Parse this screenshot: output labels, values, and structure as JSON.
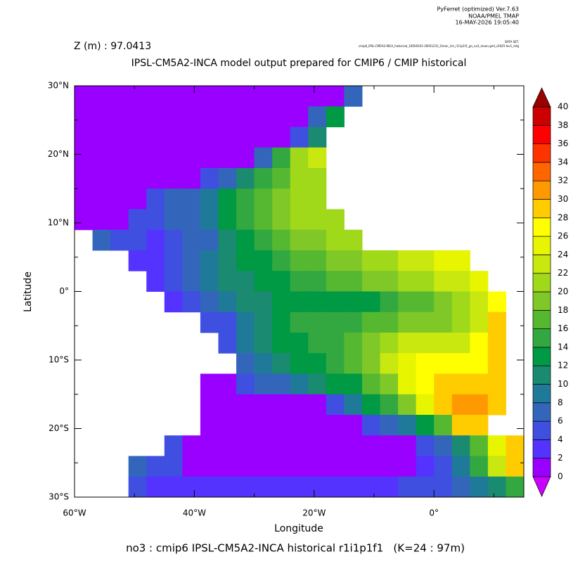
{
  "header": {
    "software": "PyFerret (optimized) Ver.7.63",
    "org": "NOAA/PMEL TMAP",
    "date": "16-MAY-2026 19:05:40",
    "dataset_label": "DATA SET:",
    "dataset": "cmip6_IPSL-CM5A2-INCA_historical_18500101-20051231_Omon_1m_r1i1p1f1_gn_no3_mean.grid_s5025-lev1_mfg"
  },
  "chart_data": {
    "type": "heatmap",
    "subtitle": "Z (m) : 97.0413",
    "title": "IPSL-CM5A2-INCA model output prepared for CMIP6 / CMIP historical",
    "x_label": "Longitude",
    "y_label": "Latitude",
    "caption": "no3 : cmip6 IPSL-CM5A2-INCA historical r1i1p1f1   (K=24 : 97m)",
    "xlim": [
      -60,
      15
    ],
    "ylim": [
      -30,
      30
    ],
    "xticks": [
      {
        "value": -60,
        "label": "60°W"
      },
      {
        "value": -40,
        "label": "40°W"
      },
      {
        "value": -20,
        "label": "20°W"
      },
      {
        "value": 0,
        "label": "0°"
      }
    ],
    "xminor": [
      -50,
      -30,
      -10,
      10
    ],
    "yticks": [
      {
        "value": -30,
        "label": "30°S"
      },
      {
        "value": -20,
        "label": "20°S"
      },
      {
        "value": -10,
        "label": "10°S"
      },
      {
        "value": 0,
        "label": "0°"
      },
      {
        "value": 10,
        "label": "10°N"
      },
      {
        "value": 20,
        "label": "20°N"
      },
      {
        "value": 30,
        "label": "30°N"
      }
    ],
    "yminor": [
      -25,
      -15,
      -5,
      5,
      15,
      25
    ],
    "x": [
      -58.5,
      -55.5,
      -52.5,
      -49.5,
      -46.5,
      -43.5,
      -40.5,
      -37.5,
      -34.5,
      -31.5,
      -28.5,
      -25.5,
      -22.5,
      -19.5,
      -16.5,
      -13.5,
      -10.5,
      -7.5,
      -4.5,
      -1.5,
      1.5,
      4.5,
      7.5,
      10.5,
      13.5
    ],
    "y": [
      28.5,
      25.5,
      22.5,
      19.5,
      16.5,
      13.5,
      10.5,
      7.5,
      4.5,
      1.5,
      -1.5,
      -4.5,
      -7.5,
      -10.5,
      -13.5,
      -16.5,
      -19.5,
      -22.5,
      -25.5,
      -28.5
    ],
    "values": [
      [
        1,
        1,
        1,
        1,
        1,
        1,
        1,
        1,
        1,
        1,
        1,
        1,
        1,
        1,
        1,
        7,
        null,
        null,
        null,
        null,
        null,
        null,
        null,
        null,
        null
      ],
      [
        1,
        1,
        1,
        1,
        1,
        1,
        1,
        1,
        1,
        1,
        1,
        1,
        1,
        7,
        13,
        null,
        null,
        null,
        null,
        null,
        null,
        null,
        null,
        null,
        null
      ],
      [
        1,
        1,
        1,
        1,
        1,
        1,
        1,
        1,
        1,
        1,
        1,
        1,
        5,
        11,
        null,
        null,
        null,
        null,
        null,
        null,
        null,
        null,
        null,
        null,
        null
      ],
      [
        1,
        1,
        1,
        1,
        1,
        1,
        1,
        1,
        1,
        1,
        7,
        15,
        21,
        23,
        null,
        null,
        null,
        null,
        null,
        null,
        null,
        null,
        null,
        null,
        null
      ],
      [
        1,
        1,
        1,
        1,
        1,
        1,
        1,
        5,
        7,
        11,
        15,
        17,
        21,
        21,
        null,
        null,
        null,
        null,
        null,
        null,
        null,
        null,
        null,
        null,
        null
      ],
      [
        1,
        1,
        1,
        1,
        5,
        7,
        7,
        9,
        13,
        15,
        17,
        19,
        21,
        21,
        null,
        null,
        null,
        null,
        null,
        null,
        null,
        null,
        null,
        null,
        null
      ],
      [
        1,
        1,
        1,
        5,
        5,
        7,
        7,
        9,
        13,
        15,
        17,
        19,
        21,
        21,
        21,
        null,
        null,
        null,
        null,
        null,
        null,
        null,
        null,
        null,
        null
      ],
      [
        null,
        7,
        5,
        5,
        3,
        5,
        7,
        7,
        11,
        13,
        15,
        17,
        19,
        19,
        21,
        21,
        null,
        null,
        null,
        null,
        null,
        null,
        null,
        null,
        null
      ],
      [
        null,
        null,
        null,
        3,
        3,
        5,
        7,
        9,
        11,
        13,
        13,
        15,
        17,
        17,
        19,
        19,
        21,
        21,
        23,
        23,
        25,
        25,
        null,
        null,
        null
      ],
      [
        null,
        null,
        null,
        null,
        3,
        5,
        7,
        9,
        11,
        11,
        13,
        13,
        15,
        15,
        17,
        17,
        19,
        19,
        21,
        21,
        23,
        23,
        25,
        null,
        null
      ],
      [
        null,
        null,
        null,
        null,
        null,
        3,
        5,
        7,
        9,
        11,
        11,
        13,
        13,
        13,
        13,
        13,
        13,
        15,
        17,
        17,
        19,
        21,
        23,
        27,
        null
      ],
      [
        null,
        null,
        null,
        null,
        null,
        null,
        null,
        5,
        5,
        9,
        11,
        13,
        15,
        15,
        15,
        15,
        17,
        17,
        19,
        19,
        19,
        21,
        23,
        29,
        null
      ],
      [
        null,
        null,
        null,
        null,
        null,
        null,
        null,
        null,
        5,
        9,
        11,
        13,
        13,
        15,
        15,
        17,
        19,
        21,
        23,
        23,
        23,
        23,
        27,
        29,
        null
      ],
      [
        null,
        null,
        null,
        null,
        null,
        null,
        null,
        null,
        null,
        7,
        9,
        11,
        13,
        13,
        15,
        17,
        19,
        23,
        25,
        27,
        27,
        27,
        27,
        29,
        null
      ],
      [
        null,
        null,
        null,
        null,
        null,
        null,
        null,
        1,
        1,
        5,
        7,
        7,
        9,
        11,
        13,
        13,
        17,
        19,
        25,
        27,
        29,
        29,
        29,
        29,
        null
      ],
      [
        null,
        null,
        null,
        null,
        null,
        null,
        null,
        1,
        1,
        1,
        1,
        1,
        1,
        1,
        5,
        9,
        13,
        15,
        19,
        25,
        29,
        31,
        31,
        29,
        null
      ],
      [
        null,
        null,
        null,
        null,
        null,
        null,
        null,
        1,
        1,
        1,
        1,
        1,
        1,
        1,
        1,
        1,
        5,
        7,
        9,
        13,
        17,
        29,
        29,
        null,
        null
      ],
      [
        null,
        null,
        null,
        null,
        null,
        5,
        1,
        1,
        1,
        1,
        1,
        1,
        1,
        1,
        1,
        1,
        1,
        1,
        1,
        5,
        7,
        11,
        17,
        25,
        29
      ],
      [
        null,
        null,
        null,
        7,
        5,
        5,
        1,
        1,
        1,
        1,
        1,
        1,
        1,
        1,
        1,
        1,
        1,
        1,
        1,
        3,
        5,
        9,
        15,
        23,
        29
      ],
      [
        null,
        null,
        null,
        5,
        3,
        3,
        3,
        3,
        3,
        3,
        3,
        3,
        3,
        3,
        3,
        3,
        3,
        3,
        5,
        5,
        5,
        7,
        9,
        11,
        15
      ]
    ],
    "colorbar": {
      "levels": [
        0,
        2,
        4,
        6,
        8,
        10,
        12,
        14,
        16,
        18,
        20,
        22,
        24,
        26,
        28,
        30,
        32,
        34,
        36,
        38,
        40
      ],
      "colors": [
        "#9900ff",
        "#5533ff",
        "#3f4fe0",
        "#3366bb",
        "#1f7a99",
        "#1a8a70",
        "#009944",
        "#33a840",
        "#55b830",
        "#80c828",
        "#a0d81a",
        "#c8e810",
        "#e8f500",
        "#ffff00",
        "#ffcc00",
        "#ff9900",
        "#ff6600",
        "#ff3300",
        "#ff0000",
        "#cc0000"
      ],
      "under_color": "#cc00ff",
      "over_color": "#990000"
    }
  }
}
